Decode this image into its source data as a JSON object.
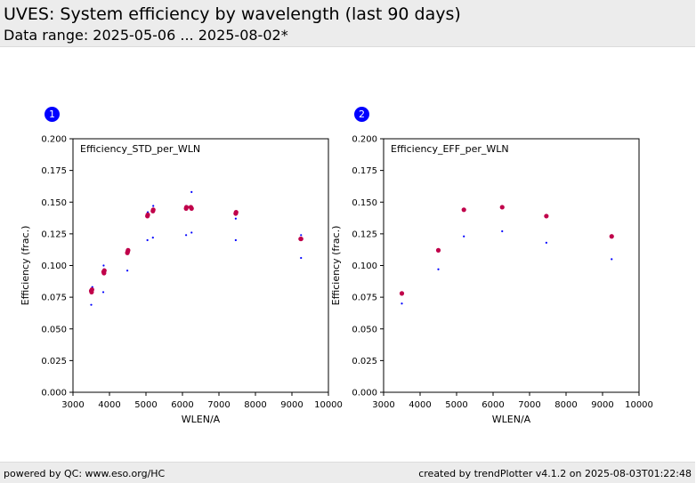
{
  "header": {
    "title": "UVES: System efficiency by wavelength (last 90 days)",
    "subtitle": "Data range: 2025-05-06 ... 2025-08-02*"
  },
  "footer": {
    "left": "powered by QC: www.eso.org/HC",
    "right": "created by trendPlotter v4.1.2 on 2025-08-03T01:22:48"
  },
  "colors": {
    "primary": "#0000ff",
    "secondary": "#c0004a",
    "header_bg": "#ececec"
  },
  "chart_data": [
    {
      "type": "scatter",
      "badge": "1",
      "title": "Efficiency_STD_per_WLN",
      "xlabel": "WLEN/A",
      "ylabel": "Efficiency (frac.)",
      "xlim": [
        3000,
        10000
      ],
      "ylim": [
        0.0,
        0.2
      ],
      "xticks": [
        "3000",
        "4000",
        "5000",
        "6000",
        "7000",
        "8000",
        "9000",
        "10000"
      ],
      "yticks": [
        "0.000",
        "0.025",
        "0.050",
        "0.075",
        "0.100",
        "0.125",
        "0.150",
        "0.175",
        "0.200"
      ],
      "grid": false,
      "series": [
        {
          "color": "#0000ff",
          "marker": "small-dot",
          "points": [
            [
              3500,
              0.069
            ],
            [
              3530,
              0.083
            ],
            [
              3830,
              0.079
            ],
            [
              3840,
              0.1
            ],
            [
              3850,
              0.097
            ],
            [
              4490,
              0.096
            ],
            [
              4500,
              0.113
            ],
            [
              5040,
              0.12
            ],
            [
              5050,
              0.142
            ],
            [
              5190,
              0.122
            ],
            [
              5200,
              0.147
            ],
            [
              6100,
              0.124
            ],
            [
              6100,
              0.147
            ],
            [
              6250,
              0.126
            ],
            [
              6250,
              0.158
            ],
            [
              7460,
              0.12
            ],
            [
              7460,
              0.137
            ],
            [
              7460,
              0.14
            ],
            [
              9250,
              0.106
            ],
            [
              9250,
              0.124
            ]
          ]
        },
        {
          "color": "#c0004a",
          "marker": "dot",
          "points": [
            [
              3500,
              0.08
            ],
            [
              3510,
              0.079
            ],
            [
              3520,
              0.081
            ],
            [
              3840,
              0.095
            ],
            [
              3850,
              0.094
            ],
            [
              3860,
              0.096
            ],
            [
              4490,
              0.11
            ],
            [
              4500,
              0.111
            ],
            [
              4510,
              0.112
            ],
            [
              5040,
              0.139
            ],
            [
              5050,
              0.14
            ],
            [
              5190,
              0.143
            ],
            [
              5200,
              0.144
            ],
            [
              6100,
              0.145
            ],
            [
              6110,
              0.146
            ],
            [
              6230,
              0.146
            ],
            [
              6250,
              0.145
            ],
            [
              7460,
              0.141
            ],
            [
              7470,
              0.142
            ],
            [
              9240,
              0.121
            ],
            [
              9250,
              0.121
            ]
          ]
        }
      ]
    },
    {
      "type": "scatter",
      "badge": "2",
      "title": "Efficiency_EFF_per_WLN",
      "xlabel": "WLEN/A",
      "ylabel": "Efficiency (frac.)",
      "xlim": [
        3000,
        10000
      ],
      "ylim": [
        0.0,
        0.2
      ],
      "xticks": [
        "3000",
        "4000",
        "5000",
        "6000",
        "7000",
        "8000",
        "9000",
        "10000"
      ],
      "yticks": [
        "0.000",
        "0.025",
        "0.050",
        "0.075",
        "0.100",
        "0.125",
        "0.150",
        "0.175",
        "0.200"
      ],
      "grid": false,
      "series": [
        {
          "color": "#0000ff",
          "marker": "small-dot",
          "points": [
            [
              3500,
              0.07
            ],
            [
              4500,
              0.097
            ],
            [
              5200,
              0.123
            ],
            [
              6250,
              0.127
            ],
            [
              7460,
              0.118
            ],
            [
              9250,
              0.105
            ]
          ]
        },
        {
          "color": "#c0004a",
          "marker": "dot",
          "points": [
            [
              3500,
              0.078
            ],
            [
              4500,
              0.112
            ],
            [
              5200,
              0.144
            ],
            [
              6250,
              0.146
            ],
            [
              7460,
              0.139
            ],
            [
              9250,
              0.123
            ]
          ]
        }
      ]
    }
  ]
}
